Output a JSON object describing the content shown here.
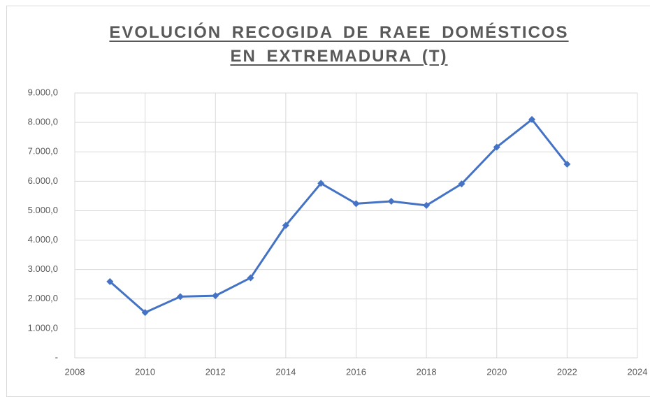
{
  "chart_data": {
    "type": "line",
    "title": "EVOLUCIÓN RECOGIDA DE RAEE DOMÉSTICOS EN EXTREMADURA (T)",
    "x": [
      2009,
      2010,
      2011,
      2012,
      2013,
      2014,
      2015,
      2016,
      2017,
      2018,
      2019,
      2020,
      2021,
      2022
    ],
    "series": [
      {
        "name": "RAEE",
        "color": "#4472c4",
        "values": [
          2590,
          1540,
          2080,
          2110,
          2720,
          4500,
          5930,
          5240,
          5320,
          5180,
          5910,
          7160,
          8100,
          6580
        ]
      }
    ],
    "xlim": [
      2008,
      2024
    ],
    "xticks": [
      2008,
      2010,
      2012,
      2014,
      2016,
      2018,
      2020,
      2022,
      2024
    ],
    "ylim": [
      0,
      9000
    ],
    "yticks": [
      {
        "value": 0,
        "label": "-"
      },
      {
        "value": 1000,
        "label": "1.000,0"
      },
      {
        "value": 2000,
        "label": "2.000,0"
      },
      {
        "value": 3000,
        "label": "3.000,0"
      },
      {
        "value": 4000,
        "label": "4.000,0"
      },
      {
        "value": 5000,
        "label": "5.000,0"
      },
      {
        "value": 6000,
        "label": "6.000,0"
      },
      {
        "value": 7000,
        "label": "7.000,0"
      },
      {
        "value": 8000,
        "label": "8.000,0"
      },
      {
        "value": 9000,
        "label": "9.000,0"
      }
    ],
    "grid": true
  }
}
